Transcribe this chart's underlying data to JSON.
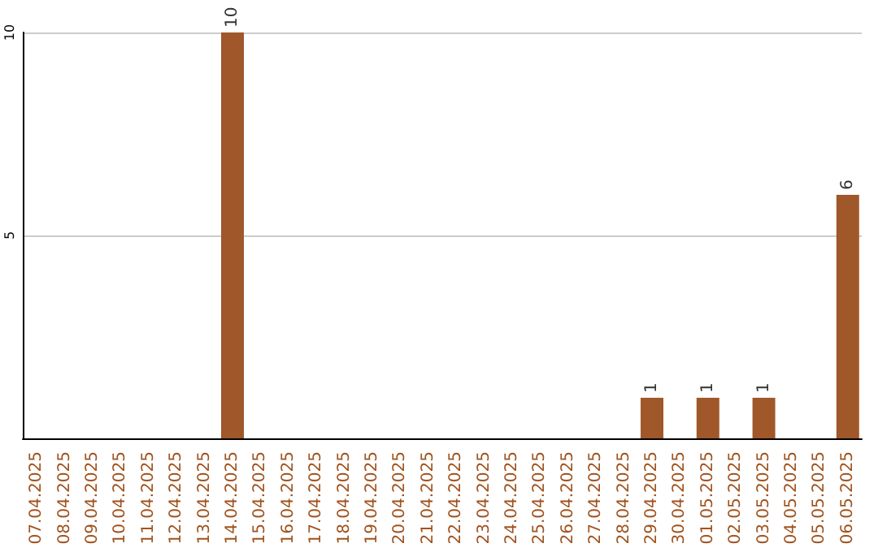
{
  "chart_data": {
    "type": "bar",
    "categories": [
      "07.04.2025",
      "08.04.2025",
      "09.04.2025",
      "10.04.2025",
      "11.04.2025",
      "12.04.2025",
      "13.04.2025",
      "14.04.2025",
      "15.04.2025",
      "16.04.2025",
      "17.04.2025",
      "18.04.2025",
      "19.04.2025",
      "20.04.2025",
      "21.04.2025",
      "22.04.2025",
      "23.04.2025",
      "24.04.2025",
      "25.04.2025",
      "26.04.2025",
      "27.04.2025",
      "28.04.2025",
      "29.04.2025",
      "30.04.2025",
      "01.05.2025",
      "02.05.2025",
      "03.05.2025",
      "04.05.2025",
      "05.05.2025",
      "06.05.2025"
    ],
    "values": [
      0,
      0,
      0,
      0,
      0,
      0,
      0,
      10,
      0,
      0,
      0,
      0,
      0,
      0,
      0,
      0,
      0,
      0,
      0,
      0,
      0,
      0,
      1,
      0,
      1,
      0,
      1,
      0,
      0,
      6
    ],
    "value_labels": [
      null,
      null,
      null,
      null,
      null,
      null,
      null,
      "10",
      null,
      null,
      null,
      null,
      null,
      null,
      null,
      null,
      null,
      null,
      null,
      null,
      null,
      null,
      "1",
      null,
      "1",
      null,
      "1",
      null,
      null,
      "6"
    ],
    "color": "#a0572a",
    "ylim": [
      0,
      10
    ],
    "yticks": [
      5,
      10
    ],
    "grid": "y"
  }
}
